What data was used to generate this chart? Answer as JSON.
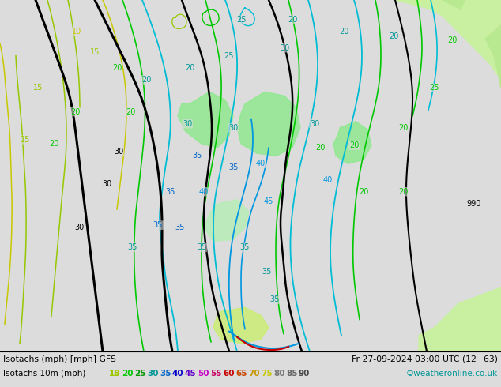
{
  "title_left": "Isotachs (mph) [mph] GFS",
  "title_right": "Fr 27-09-2024 03:00 UTC (12+63)",
  "legend_label": "Isotachs 10m (mph)",
  "copyright": "©weatheronline.co.uk",
  "levels": [
    10,
    15,
    20,
    25,
    30,
    35,
    40,
    45,
    50,
    55,
    60,
    65,
    70,
    75,
    80,
    85,
    90
  ],
  "level_colors_display": [
    "#c8c800",
    "#96c800",
    "#00c800",
    "#009600",
    "#009696",
    "#0064c8",
    "#0000c8",
    "#6400c8",
    "#c800c8",
    "#c80064",
    "#c80000",
    "#c84800",
    "#c89600",
    "#c8c800",
    "#787878",
    "#646464",
    "#484848"
  ],
  "bg_color": "#dcdcdc",
  "land_color": "#c8f0a0",
  "sea_color": "#dcdcdc",
  "bottom_bg": "#e8e8e8"
}
